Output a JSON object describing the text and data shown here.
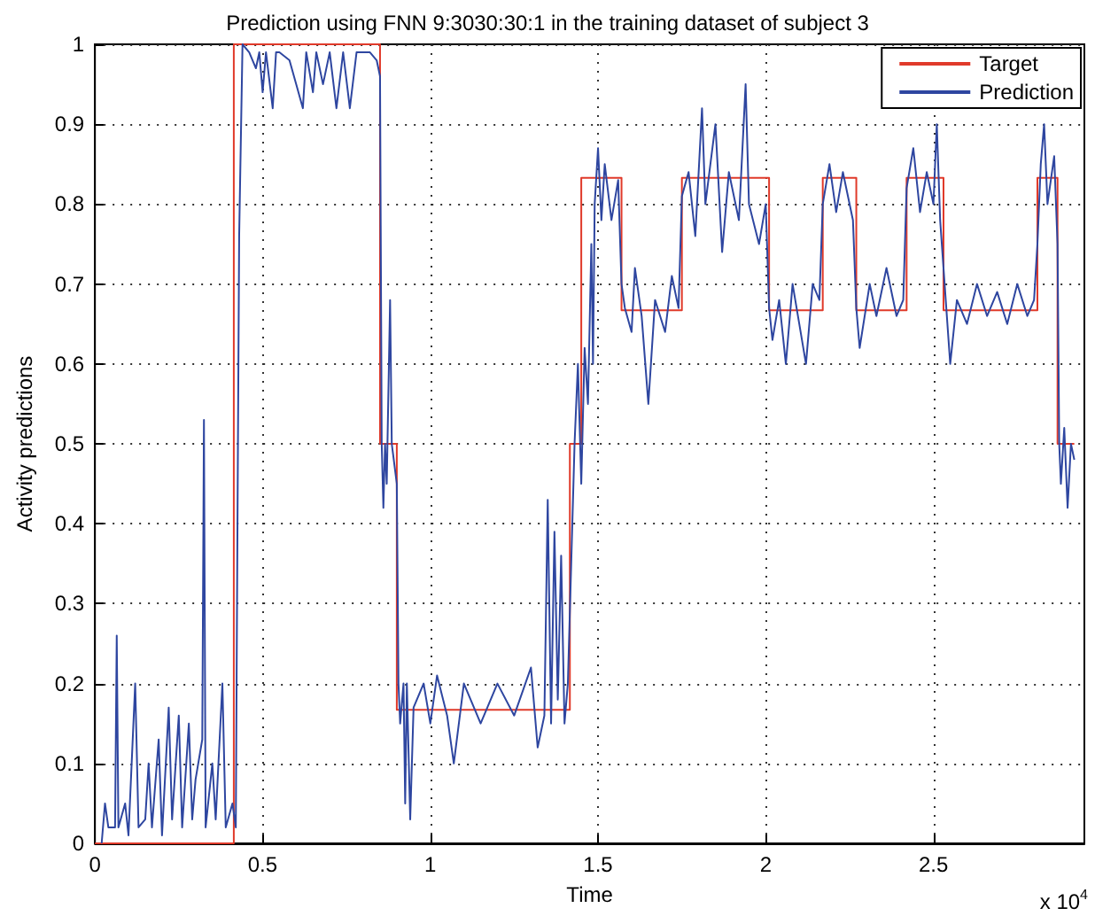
{
  "chart_data": {
    "type": "line",
    "title": "Prediction using FNN 9:3030:30:1 in the training dataset of subject 3",
    "xlabel": "Time",
    "ylabel": "Activity predictions",
    "annotations": [
      "x 10$^{4}$"
    ],
    "xlim": [
      0,
      2.95
    ],
    "xticks": [
      0,
      0.5,
      1,
      1.5,
      2,
      2.5
    ],
    "ylim": [
      0,
      1
    ],
    "yticks": [
      0,
      0.1,
      0.2,
      0.3,
      0.4,
      0.5,
      0.6,
      0.7,
      0.8,
      0.9,
      1
    ],
    "grid": true,
    "legend": "top right",
    "series": [
      {
        "name": "Target",
        "type": "step",
        "color": "#e03a2a",
        "x": [
          0,
          0.414,
          0.85,
          0.9,
          1.416,
          1.45,
          1.57,
          1.75,
          2.01,
          2.17,
          2.27,
          2.42,
          2.53,
          2.81,
          2.87,
          2.92
        ],
        "values": [
          0,
          1,
          0.5,
          0.167,
          0.5,
          0.833,
          0.667,
          0.833,
          0.667,
          0.833,
          0.667,
          0.833,
          0.667,
          0.833,
          0.5,
          0.5
        ]
      },
      {
        "name": "Prediction",
        "color": "#2e46a0",
        "x": [
          0.02,
          0.03,
          0.04,
          0.06,
          0.065,
          0.07,
          0.09,
          0.1,
          0.12,
          0.13,
          0.15,
          0.16,
          0.17,
          0.19,
          0.2,
          0.22,
          0.23,
          0.25,
          0.26,
          0.28,
          0.29,
          0.3,
          0.32,
          0.325,
          0.33,
          0.35,
          0.36,
          0.38,
          0.39,
          0.41,
          0.42,
          0.425,
          0.43,
          0.44,
          0.46,
          0.48,
          0.49,
          0.5,
          0.51,
          0.53,
          0.54,
          0.55,
          0.58,
          0.6,
          0.62,
          0.63,
          0.65,
          0.66,
          0.68,
          0.7,
          0.72,
          0.74,
          0.76,
          0.78,
          0.82,
          0.84,
          0.85,
          0.855,
          0.86,
          0.865,
          0.87,
          0.88,
          0.885,
          0.9,
          0.905,
          0.91,
          0.92,
          0.925,
          0.93,
          0.94,
          0.95,
          0.98,
          1.0,
          1.02,
          1.05,
          1.07,
          1.1,
          1.15,
          1.2,
          1.25,
          1.3,
          1.32,
          1.34,
          1.35,
          1.36,
          1.37,
          1.38,
          1.39,
          1.4,
          1.41,
          1.42,
          1.43,
          1.44,
          1.45,
          1.46,
          1.47,
          1.48,
          1.485,
          1.49,
          1.5,
          1.51,
          1.52,
          1.54,
          1.56,
          1.57,
          1.58,
          1.6,
          1.61,
          1.63,
          1.65,
          1.67,
          1.7,
          1.72,
          1.74,
          1.75,
          1.77,
          1.79,
          1.81,
          1.82,
          1.85,
          1.87,
          1.89,
          1.92,
          1.94,
          1.95,
          1.98,
          2.0,
          2.01,
          2.02,
          2.04,
          2.06,
          2.08,
          2.1,
          2.12,
          2.14,
          2.16,
          2.17,
          2.19,
          2.21,
          2.23,
          2.26,
          2.27,
          2.28,
          2.31,
          2.33,
          2.36,
          2.39,
          2.41,
          2.42,
          2.44,
          2.46,
          2.48,
          2.5,
          2.51,
          2.52,
          2.53,
          2.55,
          2.57,
          2.6,
          2.63,
          2.66,
          2.69,
          2.72,
          2.75,
          2.78,
          2.8,
          2.81,
          2.82,
          2.83,
          2.84,
          2.86,
          2.87,
          2.875,
          2.88,
          2.89,
          2.9,
          2.91,
          2.92
        ],
        "values": [
          0,
          0.05,
          0.02,
          0.02,
          0.26,
          0.02,
          0.05,
          0.01,
          0.2,
          0.02,
          0.03,
          0.1,
          0.02,
          0.13,
          0.01,
          0.17,
          0.03,
          0.16,
          0.02,
          0.15,
          0.03,
          0.08,
          0.13,
          0.53,
          0.02,
          0.1,
          0.03,
          0.2,
          0.02,
          0.05,
          0.02,
          0.4,
          0.76,
          1,
          0.99,
          0.97,
          0.99,
          0.94,
          0.99,
          0.92,
          0.99,
          0.99,
          0.98,
          0.95,
          0.92,
          0.99,
          0.94,
          0.99,
          0.95,
          0.99,
          0.92,
          0.99,
          0.92,
          0.99,
          0.99,
          0.98,
          0.96,
          0.5,
          0.42,
          0.5,
          0.45,
          0.68,
          0.5,
          0.45,
          0.2,
          0.15,
          0.2,
          0.05,
          0.2,
          0.03,
          0.17,
          0.2,
          0.15,
          0.21,
          0.16,
          0.1,
          0.2,
          0.15,
          0.2,
          0.16,
          0.22,
          0.12,
          0.16,
          0.43,
          0.15,
          0.39,
          0.18,
          0.36,
          0.15,
          0.2,
          0.35,
          0.5,
          0.6,
          0.45,
          0.62,
          0.55,
          0.75,
          0.6,
          0.8,
          0.87,
          0.78,
          0.85,
          0.78,
          0.83,
          0.7,
          0.67,
          0.64,
          0.72,
          0.66,
          0.55,
          0.68,
          0.64,
          0.71,
          0.67,
          0.81,
          0.84,
          0.76,
          0.92,
          0.8,
          0.9,
          0.74,
          0.84,
          0.78,
          0.95,
          0.8,
          0.75,
          0.8,
          0.67,
          0.63,
          0.68,
          0.6,
          0.7,
          0.65,
          0.6,
          0.7,
          0.68,
          0.8,
          0.85,
          0.79,
          0.84,
          0.78,
          0.67,
          0.62,
          0.7,
          0.66,
          0.72,
          0.66,
          0.68,
          0.82,
          0.87,
          0.79,
          0.84,
          0.8,
          0.9,
          0.78,
          0.72,
          0.6,
          0.68,
          0.65,
          0.7,
          0.66,
          0.69,
          0.65,
          0.7,
          0.66,
          0.68,
          0.75,
          0.85,
          0.9,
          0.8,
          0.86,
          0.75,
          0.5,
          0.45,
          0.52,
          0.42,
          0.5,
          0.48
        ]
      }
    ]
  }
}
